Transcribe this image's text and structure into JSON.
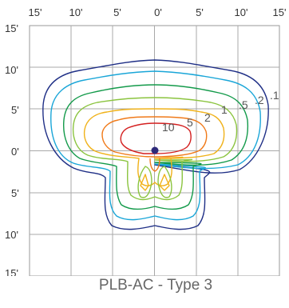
{
  "title": "PLB-AC - Type 3",
  "chart_data": {
    "type": "contour",
    "title": "PLB-AC - Type 3",
    "x_ticks": [
      "15'",
      "10'",
      "5'",
      "0'",
      "5'",
      "10'",
      "15'"
    ],
    "y_ticks": [
      "15'",
      "10'",
      "5'",
      "0'",
      "5'",
      "10'",
      "15'"
    ],
    "xlim": [
      -15,
      15
    ],
    "ylim": [
      -15,
      15
    ],
    "grid": true,
    "origin_marker": {
      "x": 0,
      "y": 0,
      "color": "#2e2a7a"
    },
    "contours": [
      {
        "level": ".1",
        "label": ".1",
        "color": "#1f2f86"
      },
      {
        "level": ".2",
        "label": ".2",
        "color": "#1aa6d8"
      },
      {
        "level": ".5",
        "label": ".5",
        "color": "#139a4a"
      },
      {
        "level": "1",
        "label": "1",
        "color": "#8bc43f"
      },
      {
        "level": "2",
        "label": "2",
        "color": "#f0b21a"
      },
      {
        "level": "5",
        "label": "5",
        "color": "#f07a1a"
      },
      {
        "level": "10",
        "label": "10",
        "color": "#d42020"
      }
    ]
  }
}
